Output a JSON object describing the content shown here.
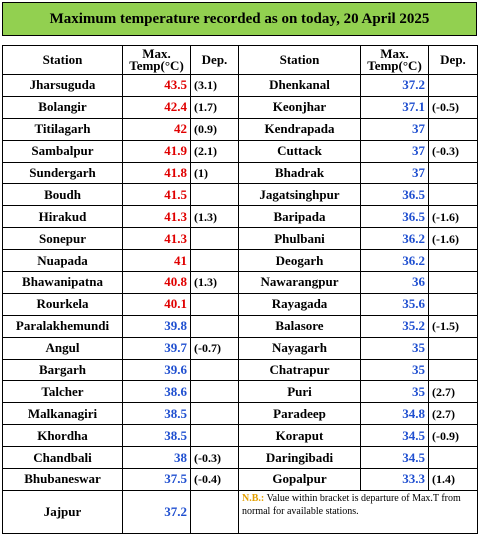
{
  "title": "Maximum temperature recorded as on today, 20 April 2025",
  "headers": {
    "station": "Station",
    "max_line1": "Max.",
    "max_line2": "Temp(°C)",
    "dep": "Dep."
  },
  "colors": {
    "title_bg": "#92d050",
    "high_temp": "#e00000",
    "low_temp": "#1f4fd0",
    "note_label": "#e4a000"
  },
  "left": [
    {
      "station": "Jharsuguda",
      "temp": "43.5",
      "dep": "(3.1)"
    },
    {
      "station": "Bolangir",
      "temp": "42.4",
      "dep": "(1.7)"
    },
    {
      "station": "Titilagarh",
      "temp": "42",
      "dep": "(0.9)"
    },
    {
      "station": "Sambalpur",
      "temp": "41.9",
      "dep": "(2.1)"
    },
    {
      "station": "Sundergarh",
      "temp": "41.8",
      "dep": "(1)"
    },
    {
      "station": "Boudh",
      "temp": "41.5",
      "dep": ""
    },
    {
      "station": "Hirakud",
      "temp": "41.3",
      "dep": "(1.3)"
    },
    {
      "station": "Sonepur",
      "temp": "41.3",
      "dep": ""
    },
    {
      "station": "Nuapada",
      "temp": "41",
      "dep": ""
    },
    {
      "station": "Bhawanipatna",
      "temp": "40.8",
      "dep": "(1.3)"
    },
    {
      "station": "Rourkela",
      "temp": "40.1",
      "dep": ""
    },
    {
      "station": "Paralakhemundi",
      "temp": "39.8",
      "dep": ""
    },
    {
      "station": "Angul",
      "temp": "39.7",
      "dep": "(-0.7)"
    },
    {
      "station": "Bargarh",
      "temp": "39.6",
      "dep": ""
    },
    {
      "station": "Talcher",
      "temp": "38.6",
      "dep": ""
    },
    {
      "station": "Malkanagiri",
      "temp": "38.5",
      "dep": ""
    },
    {
      "station": "Khordha",
      "temp": "38.5",
      "dep": ""
    },
    {
      "station": "Chandbali",
      "temp": "38",
      "dep": "(-0.3)"
    },
    {
      "station": "Bhubaneswar",
      "temp": "37.5",
      "dep": "(-0.4)"
    },
    {
      "station": "Jajpur",
      "temp": "37.2",
      "dep": ""
    }
  ],
  "right": [
    {
      "station": "Dhenkanal",
      "temp": "37.2",
      "dep": ""
    },
    {
      "station": "Keonjhar",
      "temp": "37.1",
      "dep": "(-0.5)"
    },
    {
      "station": "Kendrapada",
      "temp": "37",
      "dep": ""
    },
    {
      "station": "Cuttack",
      "temp": "37",
      "dep": "(-0.3)"
    },
    {
      "station": "Bhadrak",
      "temp": "37",
      "dep": ""
    },
    {
      "station": "Jagatsinghpur",
      "temp": "36.5",
      "dep": ""
    },
    {
      "station": "Baripada",
      "temp": "36.5",
      "dep": "(-1.6)"
    },
    {
      "station": "Phulbani",
      "temp": "36.2",
      "dep": "(-1.6)"
    },
    {
      "station": "Deogarh",
      "temp": "36.2",
      "dep": ""
    },
    {
      "station": "Nawarangpur",
      "temp": "36",
      "dep": ""
    },
    {
      "station": "Rayagada",
      "temp": "35.6",
      "dep": ""
    },
    {
      "station": "Balasore",
      "temp": "35.2",
      "dep": "(-1.5)"
    },
    {
      "station": "Nayagarh",
      "temp": "35",
      "dep": ""
    },
    {
      "station": "Chatrapur",
      "temp": "35",
      "dep": ""
    },
    {
      "station": "Puri",
      "temp": "35",
      "dep": "(2.7)"
    },
    {
      "station": "Paradeep",
      "temp": "34.8",
      "dep": "(2.7)"
    },
    {
      "station": "Koraput",
      "temp": "34.5",
      "dep": "(-0.9)"
    },
    {
      "station": "Daringibadi",
      "temp": "34.5",
      "dep": ""
    },
    {
      "station": "Gopalpur",
      "temp": "33.3",
      "dep": "(1.4)"
    }
  ],
  "note": {
    "label": "N.B.:",
    "text": "Value within bracket is departure of Max.T from normal for available stations."
  }
}
